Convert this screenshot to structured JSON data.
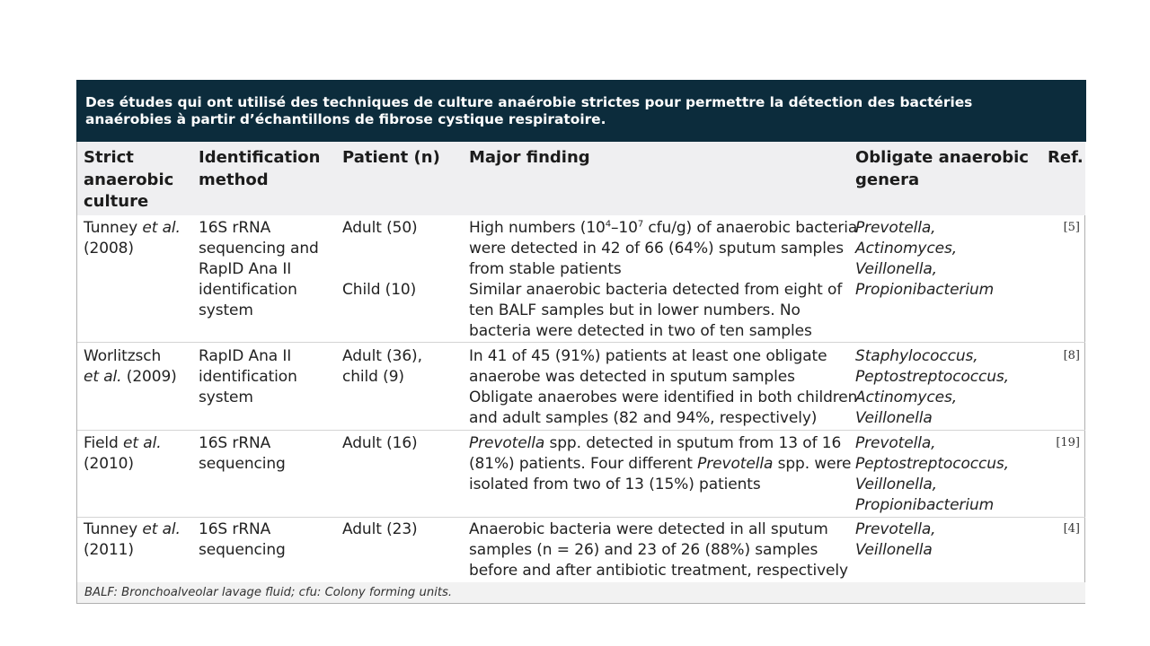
{
  "table": {
    "title_lines": [
      "Des études qui ont utilisé  des techniques de culture anaérobie strictes pour permettre la détection des bactéries",
      "anaérobies à partir d’échantillons  de fibrose cystique  respiratoire."
    ],
    "headers": {
      "culture": [
        "Strict",
        "anaerobic",
        "culture"
      ],
      "method": [
        "Identification",
        "method"
      ],
      "patient": "Patient (n)",
      "finding": "Major finding",
      "genera": [
        "Obligate anaerobic",
        "genera"
      ],
      "ref": "Ref."
    },
    "rows": [
      {
        "study": [
          "Tunney ",
          "et al.",
          "(2008)"
        ],
        "method": [
          "16S rRNA",
          "sequencing and",
          "RapID Ana II",
          "identification",
          "system"
        ],
        "patient_a": "Adult (50)",
        "patient_b": "Child (10)",
        "finding": {
          "line1_pre": "High numbers (10",
          "sup1": "4",
          "mid": "–10",
          "sup2": "7",
          "line1_post": " cfu/g) of anaerobic bacteria",
          "lines": [
            "were detected in 42 of 66 (64%) sputum samples",
            "from stable patients",
            "Similar anaerobic bacteria detected from eight of",
            "ten BALF samples but in lower numbers. No",
            "bacteria were detected in two of ten samples"
          ]
        },
        "genera": [
          "Prevotella,",
          "Actinomyces,",
          "Veillonella,",
          "Propionibacterium"
        ],
        "ref": "[5]"
      },
      {
        "study": [
          "Worlitzsch",
          "et al.",
          " (2009)"
        ],
        "method": [
          "RapID Ana II",
          "identification",
          "system"
        ],
        "patient": [
          "Adult (36),",
          "child (9)"
        ],
        "finding": [
          "In 41 of 45 (91%) patients at least one obligate",
          "anaerobe was detected in sputum samples",
          "Obligate anaerobes were identified in both children",
          "and adult samples (82 and 94%, respectively)"
        ],
        "genera": [
          "Staphylococcus,",
          "Peptostreptococcus,",
          "Actinomyces,",
          "Veillonella"
        ],
        "ref": "[8]"
      },
      {
        "study": [
          "Field ",
          "et al.",
          "(2010)"
        ],
        "method": [
          "16S rRNA",
          "sequencing"
        ],
        "patient": "Adult (16)",
        "finding": {
          "l1_it": "Prevotella",
          "l1": " spp. detected in sputum from 13 of 16",
          "l2_pre": "(81%) patients. Four different ",
          "l2_it": "Prevotella",
          "l2_post": " spp. were",
          "l3": "isolated from two of 13 (15%) patients"
        },
        "genera": [
          "Prevotella,",
          "Peptostreptococcus,",
          "Veillonella,",
          "Propionibacterium"
        ],
        "ref": "[19]"
      },
      {
        "study": [
          "Tunney ",
          "et al.",
          "(2011)"
        ],
        "method": [
          "16S rRNA",
          "sequencing"
        ],
        "patient": "Adult (23)",
        "finding": [
          "Anaerobic bacteria were detected in all sputum",
          "samples (n = 26) and 23 of 26 (88%) samples",
          "before and after antibiotic treatment, respectively"
        ],
        "genera": [
          "Prevotella,",
          "Veillonella"
        ],
        "ref": "[4]"
      }
    ],
    "footnote": "BALF: Bronchoalveolar lavage fluid; cfu: Colony forming units."
  }
}
